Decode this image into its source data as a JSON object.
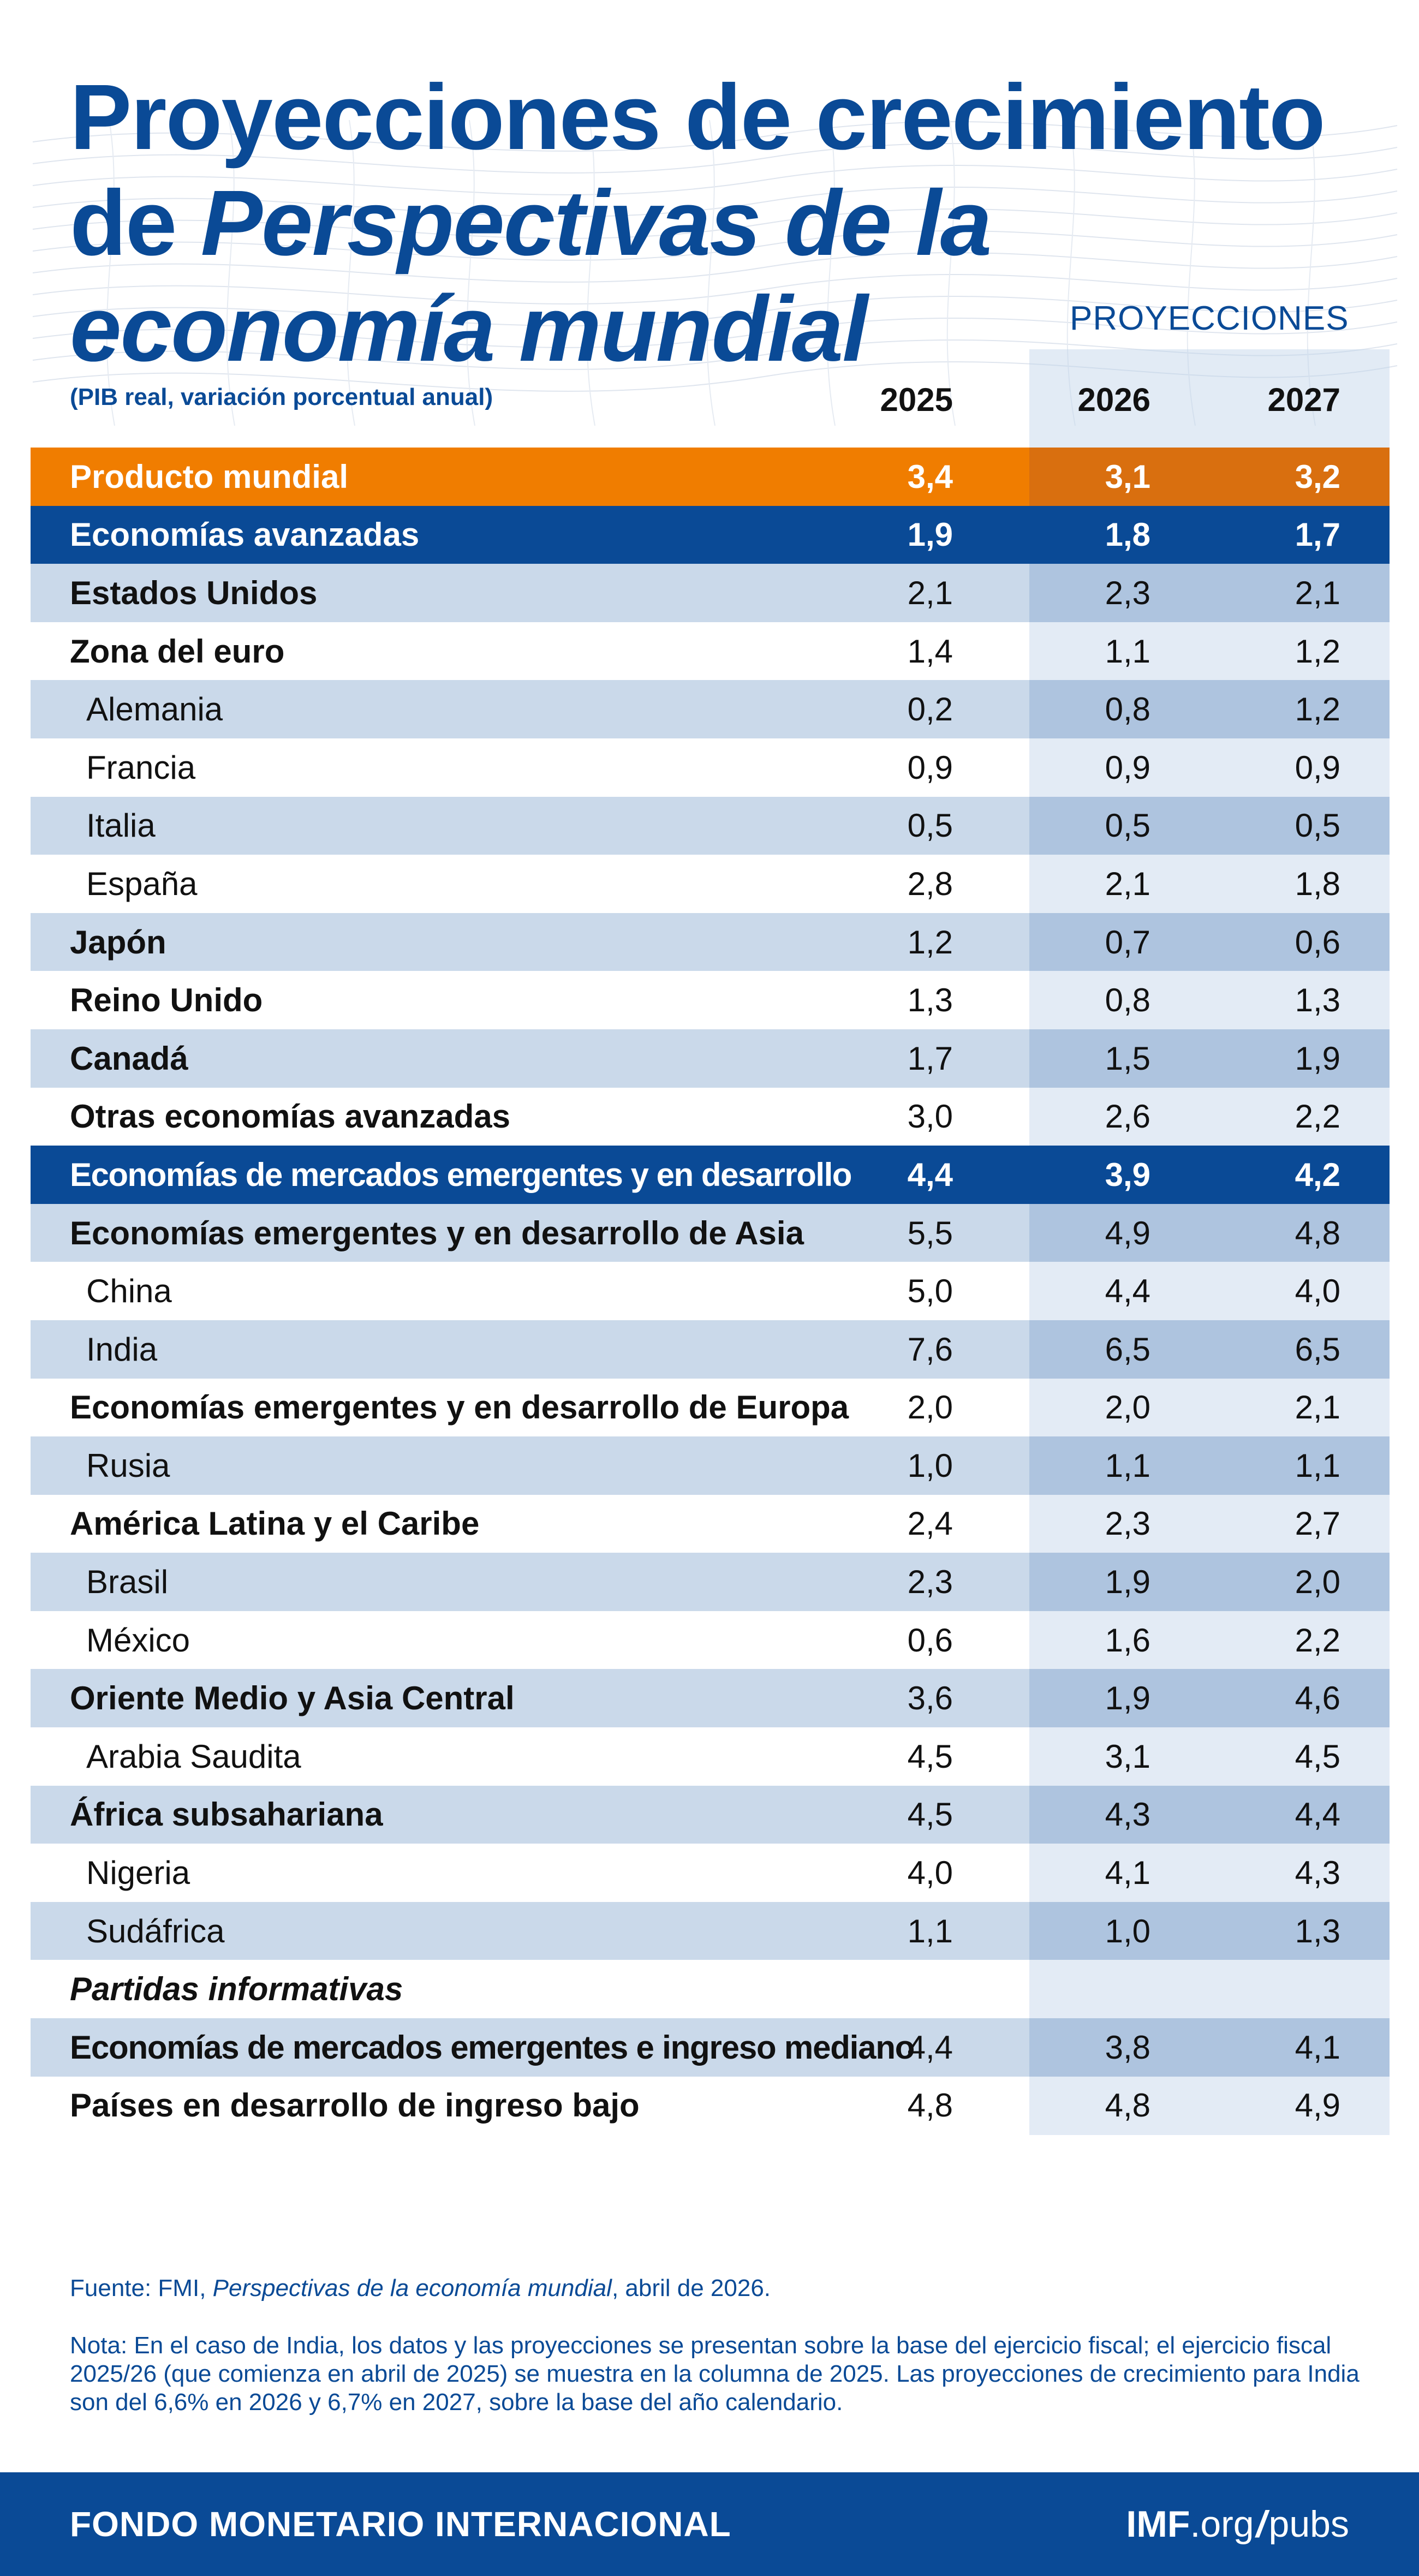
{
  "header": {
    "title_line1": "Proyecciones de crecimiento",
    "title_line2_plain": "de ",
    "title_line2_italic": "Perspectivas de la",
    "title_line3": "economía mundial",
    "projections_label": "PROYECCIONES",
    "subtitle": "(PIB real, variación porcentual anual)",
    "years": [
      "2025",
      "2026",
      "2027"
    ]
  },
  "rows": [
    {
      "label": "Producto mundial",
      "v2025": "3,4",
      "v2026": "3,1",
      "v2027": "3,2"
    },
    {
      "label": "Economías avanzadas",
      "v2025": "1,9",
      "v2026": "1,8",
      "v2027": "1,7"
    },
    {
      "label": "Estados Unidos",
      "v2025": "2,1",
      "v2026": "2,3",
      "v2027": "2,1"
    },
    {
      "label": "Zona del euro",
      "v2025": "1,4",
      "v2026": "1,1",
      "v2027": "1,2"
    },
    {
      "label": "Alemania",
      "v2025": "0,2",
      "v2026": "0,8",
      "v2027": "1,2"
    },
    {
      "label": "Francia",
      "v2025": "0,9",
      "v2026": "0,9",
      "v2027": "0,9"
    },
    {
      "label": "Italia",
      "v2025": "0,5",
      "v2026": "0,5",
      "v2027": "0,5"
    },
    {
      "label": "España",
      "v2025": "2,8",
      "v2026": "2,1",
      "v2027": "1,8"
    },
    {
      "label": "Japón",
      "v2025": "1,2",
      "v2026": "0,7",
      "v2027": "0,6"
    },
    {
      "label": "Reino Unido",
      "v2025": "1,3",
      "v2026": "0,8",
      "v2027": "1,3"
    },
    {
      "label": "Canadá",
      "v2025": "1,7",
      "v2026": "1,5",
      "v2027": "1,9"
    },
    {
      "label": "Otras economías avanzadas",
      "v2025": "3,0",
      "v2026": "2,6",
      "v2027": "2,2"
    },
    {
      "label": "Economías de mercados emergentes y en desarrollo",
      "v2025": "4,4",
      "v2026": "3,9",
      "v2027": "4,2"
    },
    {
      "label": "Economías emergentes y en desarrollo de Asia",
      "v2025": "5,5",
      "v2026": "4,9",
      "v2027": "4,8"
    },
    {
      "label": "China",
      "v2025": "5,0",
      "v2026": "4,4",
      "v2027": "4,0"
    },
    {
      "label": "India",
      "v2025": "7,6",
      "v2026": "6,5",
      "v2027": "6,5"
    },
    {
      "label": "Economías emergentes y en desarrollo de Europa",
      "v2025": "2,0",
      "v2026": "2,0",
      "v2027": "2,1"
    },
    {
      "label": "Rusia",
      "v2025": "1,0",
      "v2026": "1,1",
      "v2027": "1,1"
    },
    {
      "label": "América Latina y el Caribe",
      "v2025": "2,4",
      "v2026": "2,3",
      "v2027": "2,7"
    },
    {
      "label": "Brasil",
      "v2025": "2,3",
      "v2026": "1,9",
      "v2027": "2,0"
    },
    {
      "label": "México",
      "v2025": "0,6",
      "v2026": "1,6",
      "v2027": "2,2"
    },
    {
      "label": "Oriente Medio y Asia Central",
      "v2025": "3,6",
      "v2026": "1,9",
      "v2027": "4,6"
    },
    {
      "label": "Arabia Saudita",
      "v2025": "4,5",
      "v2026": "3,1",
      "v2027": "4,5"
    },
    {
      "label": "África subsahariana",
      "v2025": "4,5",
      "v2026": "4,3",
      "v2027": "4,4"
    },
    {
      "label": "Nigeria",
      "v2025": "4,0",
      "v2026": "4,1",
      "v2027": "4,3"
    },
    {
      "label": "Sudáfrica",
      "v2025": "1,1",
      "v2026": "1,0",
      "v2027": "1,3"
    },
    {
      "label": "Partidas informativas",
      "v2025": "",
      "v2026": "",
      "v2027": ""
    },
    {
      "label": "Economías de mercados emergentes e ingreso mediano",
      "v2025": "4,4",
      "v2026": "3,8",
      "v2027": "4,1"
    },
    {
      "label": "Países en desarrollo de ingreso bajo",
      "v2025": "4,8",
      "v2026": "4,8",
      "v2027": "4,9"
    }
  ],
  "source": {
    "prefix": "Fuente: FMI, ",
    "italic": "Perspectivas de la economía mundial",
    "suffix": ", abril de 2026."
  },
  "note": "Nota: En el caso de India, los datos y las proyecciones se presentan sobre la base del ejercicio fiscal; el ejercicio fiscal 2025/26 (que comienza en abril de 2025) se muestra en la columna de 2025. Las proyecciones de crecimiento para India son del 6,6% en 2026 y 6,7% en 2027, sobre la base del año calendario.",
  "footer": {
    "org": "FONDO MONETARIO INTERNACIONAL",
    "site_bold": "IMF",
    "site_domain": ".org",
    "site_slash": "/",
    "site_path": "pubs"
  },
  "colors": {
    "navy": "#0a4a96",
    "orange": "#f07d00",
    "row_alt": "#cad9ea",
    "projection_shade": "#e3ebf5"
  }
}
